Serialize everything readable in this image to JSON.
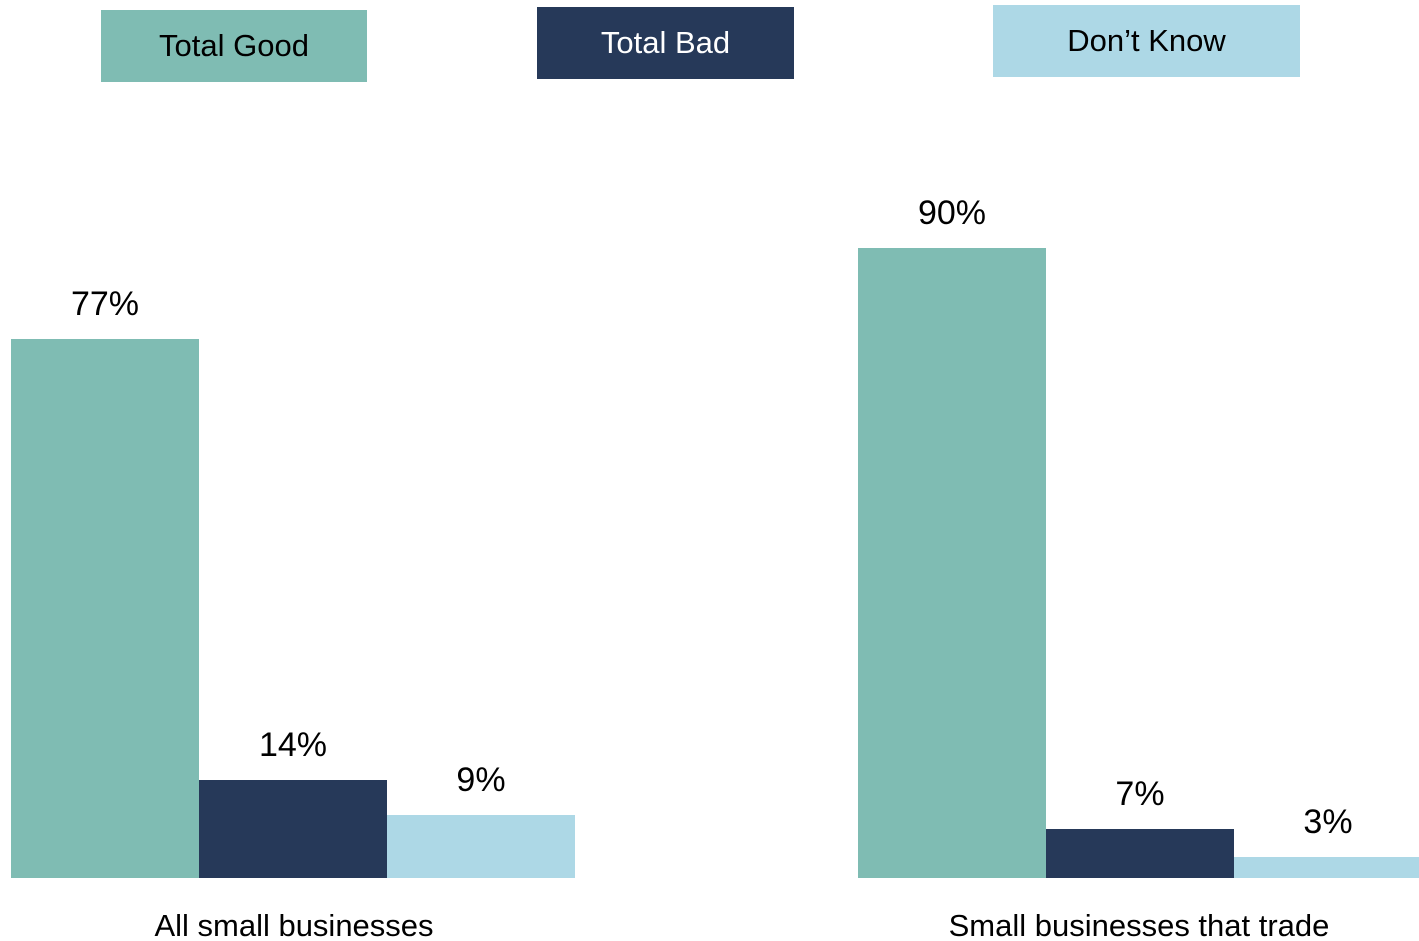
{
  "colors": {
    "good": "#7fbcb3",
    "bad": "#263959",
    "dont_know": "#add8e6",
    "legend_text_dark": "#000000",
    "legend_text_light": "#ffffff"
  },
  "legend": {
    "good": "Total Good",
    "bad": "Total Bad",
    "dont_know": "Don’t Know"
  },
  "chart_data": {
    "type": "bar",
    "categories": [
      "All small businesses",
      "Small businesses that trade"
    ],
    "series": [
      {
        "name": "Total Good",
        "values": [
          77,
          90
        ],
        "labels": [
          "77%",
          "90%"
        ]
      },
      {
        "name": "Total Bad",
        "values": [
          14,
          7
        ],
        "labels": [
          "14%",
          "7%"
        ]
      },
      {
        "name": "Don’t Know",
        "values": [
          9,
          3
        ],
        "labels": [
          "9%",
          "3%"
        ]
      }
    ],
    "ylim": [
      0,
      100
    ],
    "grid": false,
    "legend_position": "top"
  }
}
